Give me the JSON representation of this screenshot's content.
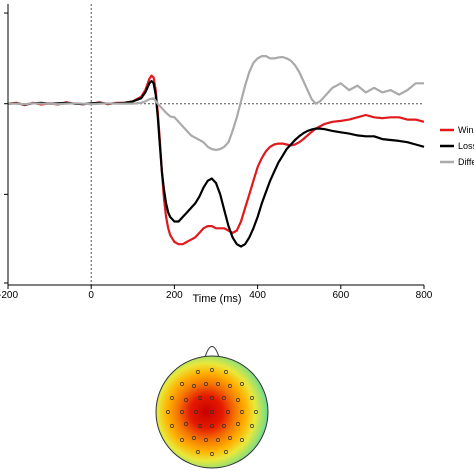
{
  "chart_data": [
    {
      "type": "line",
      "title": "",
      "xlabel": "Time (ms)",
      "ylabel": "",
      "xlim": [
        -200,
        800
      ],
      "ylim": [
        -4,
        2.2
      ],
      "xticks": [
        -200,
        0,
        200,
        400,
        600,
        800
      ],
      "xtick_labels": [
        "-200",
        "0",
        "200",
        "400",
        "600",
        "800"
      ],
      "grid": false,
      "legend_position": "right",
      "reference_lines": {
        "x": 0,
        "y": 0
      },
      "series": [
        {
          "name": "Win",
          "color": "#e0191d",
          "x": [
            -200,
            -180,
            -160,
            -140,
            -120,
            -100,
            -80,
            -60,
            -40,
            -20,
            0,
            20,
            40,
            60,
            80,
            100,
            120,
            130,
            140,
            145,
            150,
            155,
            160,
            165,
            170,
            175,
            180,
            185,
            190,
            200,
            210,
            220,
            230,
            240,
            250,
            260,
            270,
            280,
            290,
            300,
            310,
            320,
            330,
            340,
            350,
            360,
            370,
            380,
            390,
            400,
            410,
            420,
            430,
            440,
            450,
            460,
            470,
            480,
            490,
            500,
            510,
            520,
            530,
            540,
            550,
            560,
            580,
            600,
            620,
            640,
            660,
            680,
            700,
            720,
            740,
            760,
            780,
            800
          ],
          "y": [
            0,
            0.02,
            -0.03,
            0.02,
            -0.02,
            0.01,
            -0.02,
            0.03,
            0,
            -0.01,
            0,
            0.03,
            -0.01,
            0.02,
            0.02,
            0.05,
            0.15,
            0.3,
            0.55,
            0.62,
            0.58,
            0.3,
            -0.2,
            -0.8,
            -1.5,
            -2.1,
            -2.5,
            -2.75,
            -2.9,
            -3.05,
            -3.1,
            -3.1,
            -3.05,
            -3.0,
            -2.95,
            -2.85,
            -2.75,
            -2.7,
            -2.7,
            -2.75,
            -2.75,
            -2.75,
            -2.8,
            -2.85,
            -2.8,
            -2.6,
            -2.3,
            -2.0,
            -1.7,
            -1.4,
            -1.2,
            -1.05,
            -0.95,
            -0.9,
            -0.88,
            -0.88,
            -0.9,
            -0.92,
            -0.9,
            -0.85,
            -0.78,
            -0.7,
            -0.62,
            -0.55,
            -0.5,
            -0.45,
            -0.4,
            -0.38,
            -0.35,
            -0.3,
            -0.25,
            -0.3,
            -0.32,
            -0.3,
            -0.3,
            -0.35,
            -0.35,
            -0.4
          ]
        },
        {
          "name": "Loss",
          "color": "#000000",
          "x": [
            -200,
            -180,
            -160,
            -140,
            -120,
            -100,
            -80,
            -60,
            -40,
            -20,
            0,
            20,
            40,
            60,
            80,
            100,
            120,
            130,
            140,
            145,
            150,
            155,
            160,
            165,
            170,
            175,
            180,
            185,
            190,
            200,
            210,
            220,
            230,
            240,
            250,
            260,
            270,
            280,
            290,
            300,
            310,
            320,
            330,
            340,
            350,
            360,
            370,
            380,
            390,
            400,
            410,
            420,
            430,
            440,
            450,
            460,
            470,
            480,
            490,
            500,
            510,
            520,
            530,
            540,
            550,
            560,
            580,
            600,
            620,
            640,
            660,
            680,
            700,
            720,
            740,
            760,
            780,
            800
          ],
          "y": [
            0,
            0.01,
            -0.02,
            0.01,
            0.02,
            0,
            0.01,
            0.02,
            0,
            -0.01,
            0.01,
            0.02,
            0,
            0.01,
            0.02,
            0.05,
            0.12,
            0.25,
            0.45,
            0.5,
            0.45,
            0.2,
            -0.3,
            -0.9,
            -1.5,
            -1.9,
            -2.2,
            -2.4,
            -2.5,
            -2.6,
            -2.6,
            -2.5,
            -2.4,
            -2.3,
            -2.2,
            -2.05,
            -1.85,
            -1.7,
            -1.65,
            -1.75,
            -2.0,
            -2.35,
            -2.7,
            -2.95,
            -3.1,
            -3.15,
            -3.1,
            -2.95,
            -2.75,
            -2.5,
            -2.2,
            -1.95,
            -1.7,
            -1.5,
            -1.3,
            -1.15,
            -1.0,
            -0.9,
            -0.8,
            -0.72,
            -0.65,
            -0.6,
            -0.57,
            -0.55,
            -0.55,
            -0.56,
            -0.6,
            -0.63,
            -0.66,
            -0.7,
            -0.72,
            -0.72,
            -0.78,
            -0.8,
            -0.82,
            -0.85,
            -0.9,
            -0.95
          ]
        },
        {
          "name": "Difference",
          "color": "#aaaaaa",
          "x": [
            -200,
            -180,
            -160,
            -140,
            -120,
            -100,
            -80,
            -60,
            -40,
            -20,
            0,
            20,
            40,
            60,
            80,
            100,
            120,
            130,
            140,
            150,
            160,
            170,
            180,
            190,
            200,
            210,
            220,
            230,
            240,
            250,
            260,
            270,
            280,
            290,
            300,
            310,
            320,
            330,
            340,
            350,
            360,
            370,
            380,
            390,
            400,
            410,
            420,
            430,
            440,
            450,
            460,
            470,
            480,
            490,
            500,
            510,
            520,
            530,
            540,
            550,
            560,
            580,
            600,
            620,
            640,
            660,
            680,
            700,
            720,
            740,
            760,
            780,
            800
          ],
          "y": [
            0,
            0,
            -0.01,
            0.01,
            0,
            0,
            -0.01,
            0,
            0.01,
            0,
            -0.01,
            0,
            0.01,
            0,
            0,
            0,
            0.02,
            0.05,
            0.1,
            0.12,
            0,
            -0.1,
            -0.2,
            -0.28,
            -0.3,
            -0.4,
            -0.5,
            -0.6,
            -0.7,
            -0.75,
            -0.8,
            -0.85,
            -0.95,
            -1.0,
            -1.02,
            -1.0,
            -0.95,
            -0.85,
            -0.6,
            -0.3,
            0.05,
            0.4,
            0.7,
            0.9,
            1.0,
            1.05,
            1.05,
            1.0,
            1.0,
            1.02,
            1.03,
            1.0,
            0.95,
            0.85,
            0.7,
            0.5,
            0.3,
            0.1,
            0,
            0.05,
            0.15,
            0.35,
            0.45,
            0.3,
            0.4,
            0.25,
            0.35,
            0.25,
            0.3,
            0.2,
            0.3,
            0.45,
            0.45
          ]
        }
      ]
    },
    {
      "type": "heatmap",
      "title": "",
      "xlabel": "",
      "ylabel": ""
    }
  ]
}
